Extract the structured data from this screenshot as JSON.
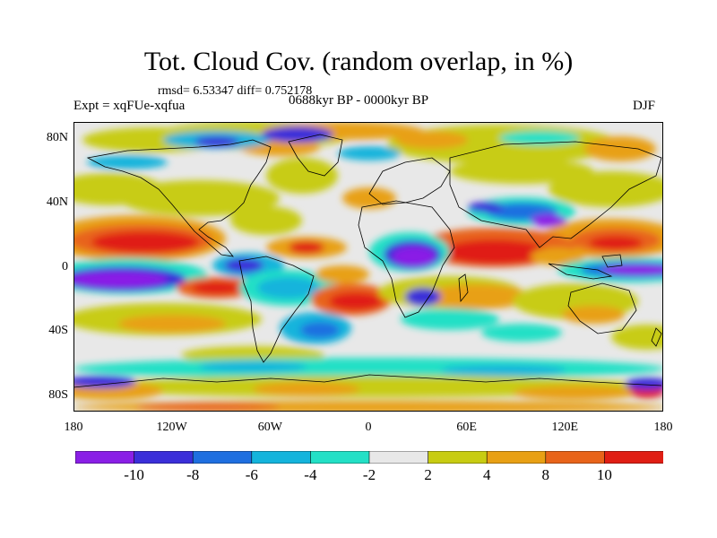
{
  "header": {
    "title": "Tot. Cloud Cov. (random overlap, in %)",
    "rmsd_text": "rmsd= 6.53347 diff= 0.752178",
    "expt_text": "Expt = xqFUe-xqfua",
    "period_text": "0688kyr BP - 0000kyr BP",
    "season": "DJF"
  },
  "axes": {
    "y_ticks": [
      "80N",
      "40N",
      "0",
      "40S",
      "80S"
    ],
    "y_values": [
      80,
      40,
      0,
      -40,
      -80
    ],
    "x_ticks": [
      "180",
      "120W",
      "60W",
      "0",
      "60E",
      "120E",
      "180"
    ],
    "x_values": [
      -180,
      -120,
      -60,
      0,
      60,
      120,
      180
    ],
    "lat_range": [
      -90,
      90
    ],
    "lon_range": [
      -180,
      180
    ]
  },
  "colorbar": {
    "labels": [
      "-10",
      "-8",
      "-6",
      "-4",
      "-2",
      "2",
      "4",
      "8",
      "10"
    ],
    "bin_colors": [
      "#8a1fe6",
      "#3b2fd9",
      "#1f6fe0",
      "#14b4dc",
      "#23e0c6",
      "#e8e8e8",
      "#c8cc12",
      "#e8a014",
      "#e8641a",
      "#e01e14"
    ]
  },
  "colors": {
    "neutral": "#e8e8e8",
    "coast": "#000000"
  }
}
